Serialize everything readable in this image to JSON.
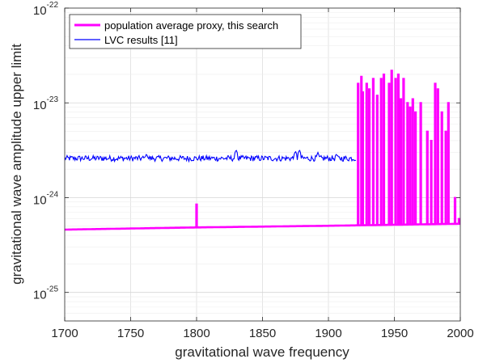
{
  "chart_data": {
    "type": "line",
    "xlabel": "gravitational wave frequency",
    "ylabel": "gravitational wave amplitude upper limit",
    "xlim": [
      1700,
      2000
    ],
    "ylim": [
      5e-26,
      1e-22
    ],
    "y_scale": "log",
    "grid": true,
    "legend_position": "top-left",
    "x_ticks": [
      "1700",
      "1750",
      "1800",
      "1850",
      "1900",
      "1950",
      "2000"
    ],
    "y_ticks": [
      {
        "base": "10",
        "exp": "-22"
      },
      {
        "base": "10",
        "exp": "-23"
      },
      {
        "base": "10",
        "exp": "-24"
      },
      {
        "base": "10",
        "exp": "-25"
      }
    ],
    "series": [
      {
        "name": "population average proxy, this search",
        "color": "#ff00ff",
        "baseline": [
          [
            1700,
            4.6e-25
          ],
          [
            1800,
            4.85e-25
          ],
          [
            1900,
            5.05e-25
          ],
          [
            2000,
            5.3e-25
          ]
        ],
        "spikes": [
          [
            1800,
            8.5e-25
          ],
          [
            1922.5,
            1.6e-23
          ],
          [
            1925,
            1.9e-23
          ],
          [
            1926,
            1.3e-23
          ],
          [
            1929,
            1.6e-23
          ],
          [
            1931,
            1.4e-23
          ],
          [
            1934,
            1.8e-23
          ],
          [
            1937,
            1.2e-23
          ],
          [
            1940,
            1.8e-23
          ],
          [
            1942,
            2e-23
          ],
          [
            1946,
            1.6e-23
          ],
          [
            1948,
            2.2e-23
          ],
          [
            1951,
            1.8e-23
          ],
          [
            1953,
            2e-23
          ],
          [
            1955,
            1.1e-23
          ],
          [
            1957,
            1.8e-23
          ],
          [
            1960,
            1e-23
          ],
          [
            1962,
            9e-24
          ],
          [
            1964,
            1.1e-23
          ],
          [
            1966,
            8e-24
          ],
          [
            1970,
            1e-23
          ],
          [
            1975,
            5e-24
          ],
          [
            1978,
            4e-24
          ],
          [
            1981,
            1.6e-23
          ],
          [
            1983,
            1.4e-23
          ],
          [
            1986,
            8e-24
          ],
          [
            1989,
            5e-24
          ],
          [
            1991,
            1e-23
          ],
          [
            1996,
            1e-24
          ],
          [
            1999,
            6e-25
          ]
        ]
      },
      {
        "name": "LVC results [11]",
        "color": "#0000ff",
        "x_range": [
          1700,
          1921
        ],
        "base_level": 2.6e-24,
        "peaks": [
          [
            1762,
            2.9e-24
          ],
          [
            1830,
            3.2e-24
          ],
          [
            1875,
            3.1e-24
          ],
          [
            1878,
            3.2e-24
          ],
          [
            1892,
            3e-24
          ],
          [
            1906,
            2.9e-24
          ]
        ]
      }
    ]
  }
}
